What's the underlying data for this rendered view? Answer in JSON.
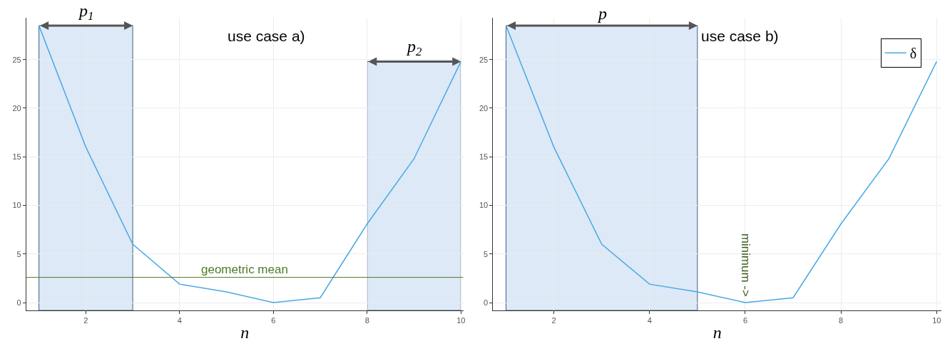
{
  "chart_data": [
    {
      "type": "line",
      "title": "use case a)",
      "xlabel": "n",
      "x": [
        1,
        2,
        3,
        4,
        5,
        6,
        7,
        8,
        9,
        10
      ],
      "series": [
        {
          "color": "#47a9e6",
          "values": [
            28.5,
            16.0,
            6.0,
            1.9,
            1.1,
            0.0,
            0.5,
            8.1,
            14.8,
            24.8
          ]
        }
      ],
      "xlim": [
        0.73,
        10.05
      ],
      "xticks": [
        2,
        4,
        6,
        8,
        10
      ],
      "ylim": [
        -0.8,
        29.3
      ],
      "yticks": [
        0,
        5,
        10,
        15,
        20,
        25
      ],
      "bands": [
        {
          "axis": "x",
          "from": 1,
          "to": 3,
          "label": "p$_{1}$",
          "color": "#dde9f6"
        },
        {
          "axis": "x",
          "from": 8,
          "to": 10,
          "label": "p$_{2}$",
          "color": "#dde9f6"
        }
      ],
      "ref_lines": [
        {
          "axis": "y",
          "value": 2.6,
          "label": "geometric mean",
          "color": "#4f7a28"
        }
      ],
      "grid": true,
      "legend": false,
      "marker": "none",
      "line_style": "solid"
    },
    {
      "type": "line",
      "title": "use case b)",
      "xlabel": "n",
      "x": [
        1,
        2,
        3,
        4,
        5,
        6,
        7,
        8,
        9,
        10
      ],
      "series": [
        {
          "name": "δ",
          "color": "#47a9e6",
          "values": [
            28.5,
            16.0,
            6.0,
            1.9,
            1.1,
            0.0,
            0.5,
            8.1,
            14.8,
            24.8
          ]
        }
      ],
      "xlim": [
        0.73,
        10.1
      ],
      "xticks": [
        2,
        4,
        6,
        8,
        10
      ],
      "ylim": [
        -0.8,
        29.3
      ],
      "yticks": [
        0,
        5,
        10,
        15,
        20,
        25
      ],
      "bands": [
        {
          "axis": "x",
          "from": 1,
          "to": 5,
          "label": "p",
          "color": "#dde9f6"
        }
      ],
      "annotations": [
        {
          "text": "minimum ->",
          "x": 6,
          "y": 0
        }
      ],
      "grid": true,
      "legend": "top right",
      "marker": "none",
      "line_style": "solid"
    }
  ]
}
